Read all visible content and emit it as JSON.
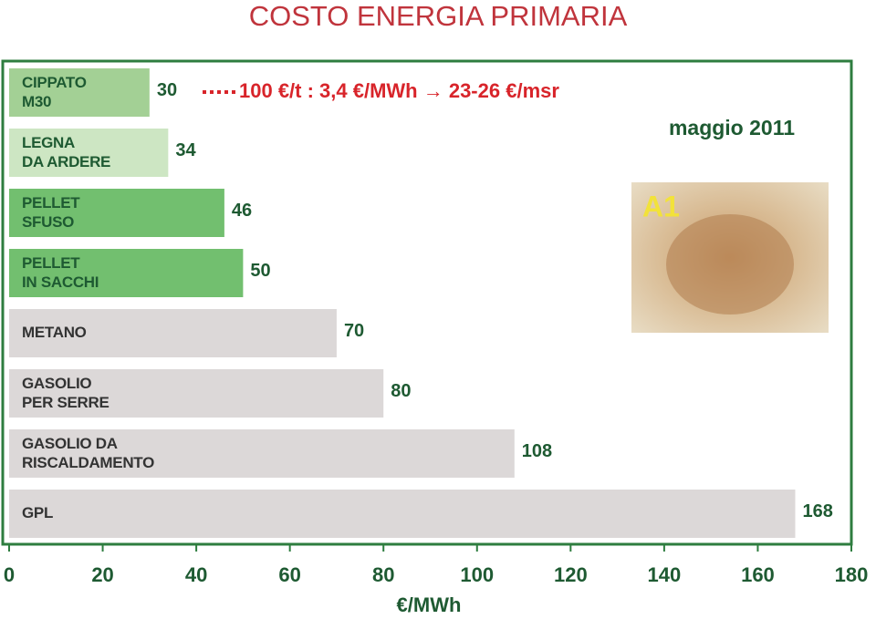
{
  "chart_data": {
    "type": "bar",
    "orientation": "horizontal",
    "title": "COSTO ENERGIA PRIMARIA",
    "categories": [
      "CIPPATO\nM30",
      "LEGNA\nDA ARDERE",
      "PELLET\nSFUSO",
      "PELLET\nIN SACCHI",
      "METANO",
      "GASOLIO\nPER SERRE",
      "GASOLIO DA\nRISCALDAMENTO",
      "GPL"
    ],
    "values": [
      30,
      34,
      46,
      50,
      70,
      80,
      108,
      168
    ],
    "colors": [
      "#a3d095",
      "#cde6c3",
      "#72bf6f",
      "#72bf6f",
      "#dcd8d8",
      "#dcd8d8",
      "#dcd8d8",
      "#dcd8d8"
    ],
    "xlim": [
      0,
      180
    ],
    "xticks": [
      0,
      20,
      40,
      60,
      80,
      100,
      120,
      140,
      160,
      180
    ],
    "xlabel": "€/MWh",
    "annotation": "100 €/t : 3,4 €/MWh → 23-26 €/msr",
    "date_label": "maggio 2011",
    "image_label": "A1"
  }
}
